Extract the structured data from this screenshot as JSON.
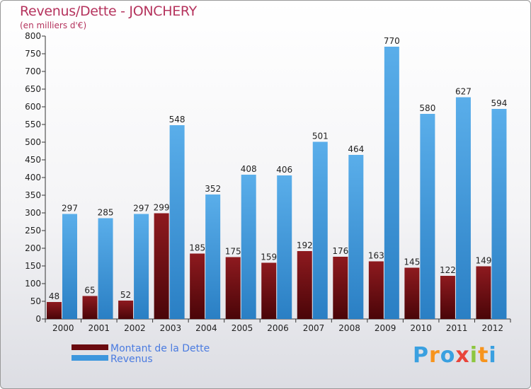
{
  "title": "Revenus/Dette - JONCHERY",
  "subtitle": "(en milliers d'€)",
  "brand": {
    "letters": [
      "P",
      "r",
      "o",
      "x",
      "i",
      "t",
      "i"
    ],
    "colors": [
      "#3aa0e0",
      "#f7941d",
      "#3aa0e0",
      "#e9443a",
      "#8dc63f",
      "#f7941d",
      "#3aa0e0"
    ]
  },
  "chart_data": {
    "type": "bar",
    "categories": [
      "2000",
      "2001",
      "2002",
      "2003",
      "2004",
      "2005",
      "2006",
      "2007",
      "2008",
      "2009",
      "2010",
      "2011",
      "2012"
    ],
    "series": [
      {
        "name": "Montant de la Dette",
        "color": "#7a0f14",
        "values": [
          48,
          65,
          52,
          299,
          185,
          175,
          159,
          192,
          176,
          163,
          145,
          122,
          149
        ]
      },
      {
        "name": "Revenus",
        "color": "#3d97dd",
        "values": [
          297,
          285,
          297,
          548,
          352,
          408,
          406,
          501,
          464,
          770,
          580,
          627,
          594
        ]
      }
    ],
    "ylim": [
      0,
      800
    ],
    "yticks": [
      0,
      50,
      100,
      150,
      200,
      250,
      300,
      350,
      400,
      450,
      500,
      550,
      600,
      650,
      700,
      750,
      800
    ],
    "grid": false,
    "legend": "bottom-left"
  }
}
